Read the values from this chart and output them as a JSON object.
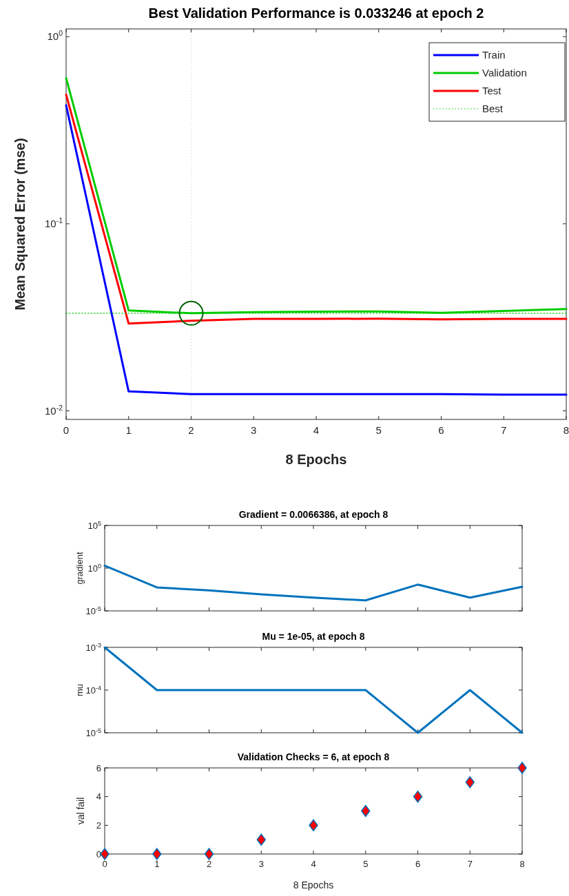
{
  "chart_data": [
    {
      "type": "line",
      "title": "Best Validation Performance is 0.033246 at epoch 2",
      "xlabel": "8 Epochs",
      "ylabel": "Mean Squared Error  (mse)",
      "x": [
        0,
        1,
        2,
        3,
        4,
        5,
        6,
        7,
        8
      ],
      "log": "y",
      "xlim": [
        0,
        8
      ],
      "xticks": [
        0,
        1,
        2,
        3,
        4,
        5,
        6,
        7,
        8
      ],
      "ylim": [
        0.009,
        1.1
      ],
      "yticks": [
        {
          "value": 0.01,
          "label": "10$^{-2}$"
        },
        {
          "value": 0.1,
          "label": "10$^{-1}$"
        },
        {
          "value": 1,
          "label": "10$^{0}$"
        }
      ],
      "legend": "top right",
      "ref_lines": [
        {
          "axis": "x",
          "value": 2,
          "color": "#d9d9d9",
          "line_style": "dotted"
        }
      ],
      "series": [
        {
          "name": "Train",
          "color": "#0000ff",
          "values": [
            0.43,
            0.0127,
            0.0123,
            0.0123,
            0.0123,
            0.0123,
            0.0123,
            0.0122,
            0.0122
          ]
        },
        {
          "name": "Validation",
          "color": "#00cc00",
          "values": [
            0.6,
            0.0344,
            0.033246,
            0.0337,
            0.0339,
            0.034,
            0.0334,
            0.0342,
            0.035
          ]
        },
        {
          "name": "Test",
          "color": "#ff0000",
          "values": [
            0.49,
            0.0293,
            0.0303,
            0.031,
            0.031,
            0.0311,
            0.0308,
            0.031,
            0.031
          ]
        },
        {
          "name": "Best",
          "color": "#00cc00",
          "line_style": "dotted",
          "x": [
            0,
            8
          ],
          "values": [
            0.033246,
            0.033246
          ]
        },
        {
          "type": "scatter",
          "color": "#006400",
          "marker": "circle",
          "x": [
            2
          ],
          "values": [
            0.033246
          ]
        }
      ]
    },
    {
      "type": "line",
      "title": "Gradient = 0.0066386, at epoch 8",
      "ylabel": "gradient",
      "x": [
        0,
        1,
        2,
        3,
        4,
        5,
        6,
        7,
        8
      ],
      "log": "y",
      "xlim": [
        0,
        8
      ],
      "xticks": [
        0,
        1,
        2,
        3,
        4,
        5,
        6,
        7,
        8
      ],
      "ylim": [
        1e-05,
        100000
      ],
      "yticks": [
        {
          "value": 1e-05,
          "label": "10$^{-5}$"
        },
        {
          "value": 1,
          "label": "10$^{0}$"
        },
        {
          "value": 100000,
          "label": "10$^{5}$"
        }
      ],
      "tick_labels": "y",
      "series": [
        {
          "color": "#0072bd",
          "values": [
            2,
            0.0056,
            0.0025,
            0.00087,
            0.00036,
            0.00017,
            0.012,
            0.00036,
            0.0066386
          ]
        }
      ]
    },
    {
      "type": "line",
      "title": "Mu = 1e-05, at epoch 8",
      "ylabel": "mu",
      "x": [
        0,
        1,
        2,
        3,
        4,
        5,
        6,
        7,
        8
      ],
      "log": "y",
      "xlim": [
        0,
        8
      ],
      "xticks": [
        0,
        1,
        2,
        3,
        4,
        5,
        6,
        7,
        8
      ],
      "ylim": [
        1e-05,
        0.001
      ],
      "yticks": [
        {
          "value": 1e-05,
          "label": "10$^{-5}$"
        },
        {
          "value": 0.0001,
          "label": "10$^{-4}$"
        },
        {
          "value": 0.001,
          "label": "10$^{-3}$"
        }
      ],
      "tick_labels": "y",
      "series": [
        {
          "color": "#0072bd",
          "values": [
            0.001,
            0.0001,
            0.0001,
            0.0001,
            0.0001,
            0.0001,
            1e-05,
            0.0001,
            1e-05
          ]
        }
      ]
    },
    {
      "type": "scatter",
      "title": "Validation Checks = 6, at epoch 8",
      "xlabel": "8 Epochs",
      "ylabel": "val fail",
      "x": [
        0,
        1,
        2,
        3,
        4,
        5,
        6,
        7,
        8
      ],
      "marker": "diamond",
      "xlim": [
        0,
        8
      ],
      "xticks": [
        0,
        1,
        2,
        3,
        4,
        5,
        6,
        7,
        8
      ],
      "ylim": [
        0,
        6
      ],
      "yticks": [
        0,
        2,
        4,
        6
      ],
      "series": [
        {
          "color": "#ff0000",
          "values": [
            0,
            0,
            0,
            1,
            2,
            3,
            4,
            5,
            6
          ]
        }
      ]
    }
  ]
}
